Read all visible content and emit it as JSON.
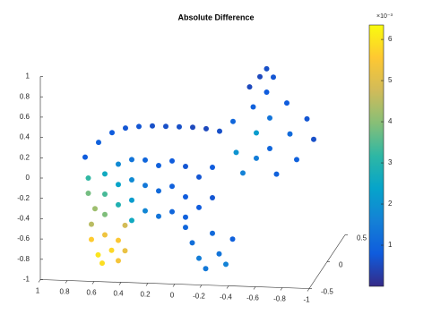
{
  "chart_data": {
    "type": "scatter3d",
    "title": "Absolute Difference",
    "series": [
      {
        "x": [
          0.8,
          0.75,
          0.75,
          0.7,
          0.7,
          0.6,
          0.6,
          0.6,
          0.6,
          0.5,
          0.5,
          0.5,
          0.5,
          0.4,
          0.4,
          0.4,
          0.4,
          0.4,
          0.3,
          0.3,
          0.3,
          0.3,
          0.2,
          0.2,
          0.2,
          0.2,
          0.1,
          0.1,
          0.1,
          0.1,
          0,
          0,
          0,
          0,
          -0.1,
          -0.1,
          -0.1,
          -0.2,
          -0.2,
          -0.2,
          0.7,
          0.7,
          0.65,
          0.6,
          0.55,
          0.5,
          0.45,
          0.45,
          0.62,
          0.5,
          0,
          -0.05,
          -0.1,
          -0.2,
          -0.25,
          -0.3,
          -0.35,
          -0.15,
          -0.3,
          -0.35,
          -0.4,
          -0.45,
          -0.5,
          -0.5,
          -0.55,
          -0.6,
          -0.6,
          -0.65,
          -0.7,
          -0.75,
          -0.8,
          -0.85,
          -0.55,
          -0.5,
          -0.6,
          -0.45,
          -0.9
        ],
        "y": [
          0,
          -0.1,
          -0.1,
          0,
          -0.1,
          0,
          -0.2,
          -0.2,
          -0.2,
          0,
          -0.2,
          -0.2,
          -0.2,
          0,
          -0.2,
          -0.2,
          -0.2,
          -0.2,
          0,
          -0.2,
          -0.2,
          -0.2,
          0,
          -0.2,
          -0.2,
          -0.2,
          0,
          -0.2,
          -0.2,
          -0.2,
          0,
          -0.2,
          -0.2,
          -0.2,
          0,
          -0.2,
          -0.2,
          0,
          -0.2,
          -0.2,
          -0.2,
          -0.2,
          -0.2,
          -0.2,
          -0.2,
          -0.2,
          -0.2,
          -0.2,
          -0.2,
          -0.2,
          -0.2,
          -0.2,
          -0.2,
          -0.2,
          -0.2,
          -0.2,
          -0.2,
          -0.2,
          0,
          -0.1,
          -0.1,
          0,
          -0.1,
          -0.1,
          0,
          -0.1,
          -0.1,
          -0.1,
          0,
          -0.1,
          -0.1,
          0,
          0,
          0,
          0,
          -0.1,
          0
        ],
        "z": [
          -0.05,
          -0.2,
          -0.35,
          0.1,
          -0.5,
          0.2,
          -0.1,
          -0.3,
          -0.5,
          0.25,
          0,
          -0.2,
          -0.4,
          0.27,
          0.05,
          -0.15,
          -0.35,
          -0.55,
          0.28,
          0.05,
          -0.2,
          -0.45,
          0.28,
          0,
          -0.25,
          -0.5,
          0.28,
          0.05,
          -0.2,
          -0.45,
          0.28,
          0,
          -0.3,
          -0.5,
          0.27,
          -0.1,
          -0.4,
          0.25,
          0,
          -0.3,
          -0.6,
          -0.75,
          -0.9,
          -0.7,
          -0.85,
          -0.75,
          -0.6,
          -0.85,
          -0.98,
          -0.95,
          -0.6,
          -0.75,
          -0.9,
          -0.65,
          -0.85,
          -0.95,
          -0.7,
          -1,
          0.35,
          0.1,
          -0.1,
          0.5,
          0.3,
          0.05,
          0.65,
          0.45,
          0.15,
          -0.1,
          0.55,
          0.3,
          0.05,
          0.4,
          0.88,
          0.8,
          0.8,
          0.75,
          0.2
        ],
        "values": [
          0.8,
          3.2,
          3.8,
          0.9,
          4.2,
          0.8,
          2.6,
          3.4,
          3.9,
          0.7,
          1.8,
          2.4,
          2.9,
          0.7,
          1.3,
          1.8,
          2.2,
          2.6,
          0.6,
          1,
          1.4,
          1.7,
          0.6,
          0.9,
          1.1,
          1.3,
          0.6,
          0.8,
          0.9,
          1,
          0.5,
          0.7,
          0.8,
          0.9,
          0.5,
          0.7,
          0.8,
          0.6,
          0.8,
          0.7,
          4.5,
          5.6,
          6,
          5.3,
          5.8,
          5.5,
          4.8,
          5.2,
          5.9,
          5.4,
          1,
          1.2,
          1.5,
          1.1,
          1.3,
          1.6,
          0.9,
          1.4,
          1,
          2,
          1.6,
          0.9,
          2.2,
          1.5,
          0.8,
          1.3,
          1,
          0.9,
          0.8,
          1.1,
          0.9,
          0.7,
          0.6,
          0.5,
          0.7,
          0.5,
          0.6
        ]
      }
    ],
    "xlim": [
      -1,
      1
    ],
    "xticks": [
      1,
      0.8,
      0.6,
      0.4,
      0.2,
      0,
      -0.2,
      -0.4,
      -0.6,
      -0.8,
      -1
    ],
    "ylim": [
      -0.5,
      0.5
    ],
    "yticks": [
      -0.5,
      0,
      0.5
    ],
    "zlim": [
      -1,
      1
    ],
    "zticks": [
      -1,
      -0.8,
      -0.6,
      -0.4,
      -0.2,
      0,
      0.2,
      0.4,
      0.6,
      0.8,
      1
    ],
    "colormap": "parula",
    "clim": [
      0,
      6.35
    ],
    "cticks": [
      1,
      2,
      3,
      4,
      5,
      6
    ],
    "colorbar_exponent": "×10⁻³"
  }
}
